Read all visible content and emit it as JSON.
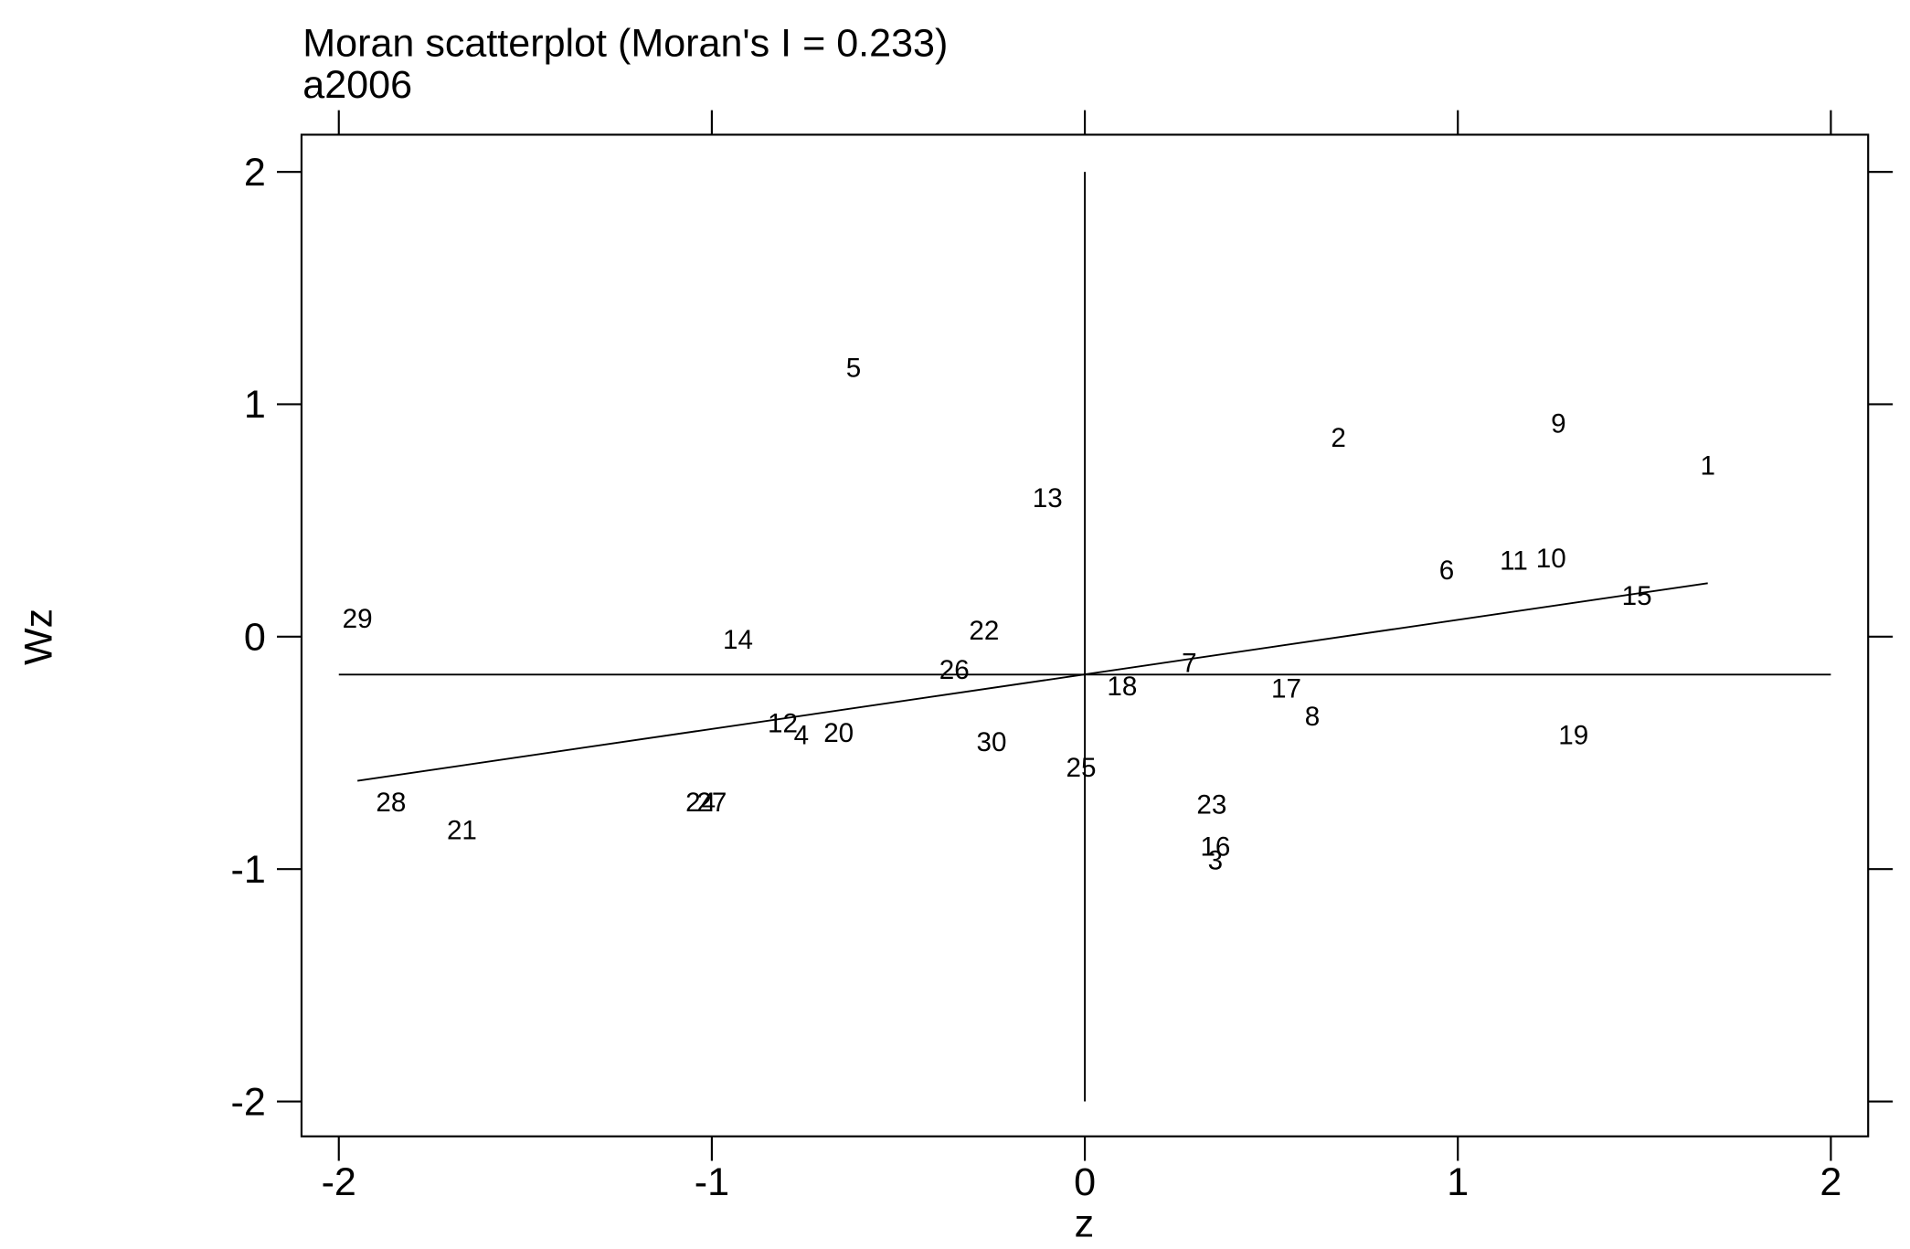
{
  "chart_data": {
    "type": "scatter",
    "title": "Moran scatterplot (Moran's I = 0.233)",
    "subtitle": "a2006",
    "x_label": "z",
    "y_label": "Wz",
    "labels": [
      "1",
      "2",
      "3",
      "4",
      "5",
      "6",
      "7",
      "8",
      "9",
      "10",
      "11",
      "12",
      "13",
      "14",
      "15",
      "16",
      "17",
      "18",
      "19",
      "20",
      "21",
      "22",
      "23",
      "24",
      "25",
      "26",
      "27",
      "28",
      "29",
      "30"
    ],
    "x": [
      1.67,
      0.68,
      0.35,
      -0.76,
      -0.62,
      0.97,
      0.28,
      0.61,
      1.27,
      1.25,
      1.15,
      -0.81,
      -0.1,
      -0.93,
      1.48,
      0.35,
      0.54,
      0.1,
      1.31,
      -0.66,
      -1.67,
      -0.27,
      0.34,
      -1.03,
      -0.01,
      -0.35,
      -1.0,
      -1.86,
      -1.95,
      -0.25
    ],
    "values": [
      0.74,
      0.86,
      -0.96,
      -0.42,
      1.16,
      0.29,
      -0.11,
      -0.34,
      0.92,
      0.34,
      0.33,
      -0.37,
      0.6,
      -0.01,
      0.18,
      -0.9,
      -0.22,
      -0.21,
      -0.42,
      -0.41,
      -0.83,
      0.03,
      -0.72,
      -0.71,
      -0.56,
      -0.14,
      -0.71,
      -0.71,
      0.08,
      -0.45
    ],
    "mean_line_y": -0.163,
    "mean_line_x": 0,
    "regression_line": {
      "x": [
        -1.95,
        1.67
      ],
      "y": [
        -0.62,
        0.23
      ]
    },
    "xlim": [
      -2.1,
      2.1
    ],
    "ylim": [
      -2.15,
      2.16
    ],
    "xticks": [
      -2,
      -1,
      0,
      1,
      2
    ],
    "yticks": [
      -2,
      -1,
      0,
      1,
      2
    ],
    "grid": false
  }
}
